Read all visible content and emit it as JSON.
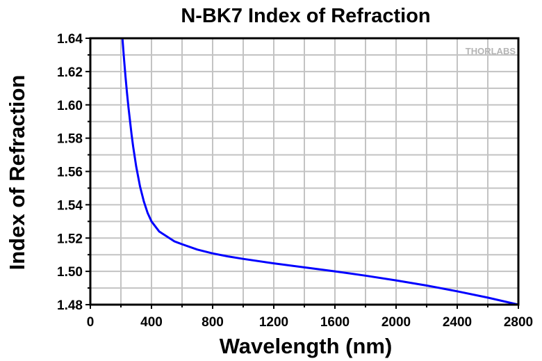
{
  "chart_data": {
    "type": "line",
    "title": "N-BK7 Index of Refraction",
    "xlabel": "Wavelength (nm)",
    "ylabel": "Index of Refraction",
    "xlim": [
      0,
      2800
    ],
    "ylim": [
      1.48,
      1.64
    ],
    "x_ticks": [
      "0",
      "400",
      "800",
      "1200",
      "1600",
      "2000",
      "2400",
      "2800"
    ],
    "y_ticks": [
      "1.48",
      "1.50",
      "1.52",
      "1.54",
      "1.56",
      "1.58",
      "1.60",
      "1.62",
      "1.64"
    ],
    "grid": true,
    "watermark": "THORLABS",
    "series": [
      {
        "name": "N-BK7",
        "color": "#0000ff",
        "x": [
          210,
          220,
          230,
          240,
          250,
          260,
          270,
          280,
          290,
          300,
          325,
          350,
          375,
          400,
          450,
          500,
          550,
          600,
          700,
          800,
          900,
          1000,
          1200,
          1400,
          1600,
          1800,
          2000,
          2200,
          2400,
          2600,
          2800
        ],
        "y": [
          1.64,
          1.628,
          1.617,
          1.607,
          1.598,
          1.59,
          1.582,
          1.575,
          1.569,
          1.563,
          1.551,
          1.542,
          1.535,
          1.53,
          1.524,
          1.521,
          1.518,
          1.5163,
          1.5131,
          1.5108,
          1.509,
          1.5075,
          1.5048,
          1.5024,
          1.5,
          1.4974,
          1.4946,
          1.4915,
          1.488,
          1.4842,
          1.48
        ]
      }
    ]
  }
}
